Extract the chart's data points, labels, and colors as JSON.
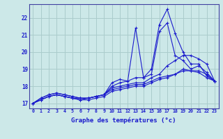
{
  "xlabel": "Graphe des températures (°c)",
  "xlim": [
    -0.5,
    23.5
  ],
  "ylim": [
    16.7,
    22.8
  ],
  "xticks": [
    0,
    1,
    2,
    3,
    4,
    5,
    6,
    7,
    8,
    9,
    10,
    11,
    12,
    13,
    14,
    15,
    16,
    17,
    18,
    19,
    20,
    21,
    22,
    23
  ],
  "yticks": [
    17,
    18,
    19,
    20,
    21,
    22
  ],
  "background_color": "#cce8e8",
  "grid_color": "#aacccc",
  "line_color": "#1a1acc",
  "series": [
    [
      17.0,
      17.3,
      17.5,
      17.6,
      17.5,
      17.4,
      17.3,
      17.3,
      17.4,
      17.5,
      18.2,
      18.4,
      18.3,
      21.4,
      18.5,
      19.0,
      21.6,
      22.5,
      21.1,
      20.0,
      19.3,
      19.3,
      18.6,
      18.3
    ],
    [
      17.0,
      17.3,
      17.5,
      17.6,
      17.5,
      17.4,
      17.3,
      17.3,
      17.4,
      17.5,
      18.0,
      18.2,
      18.3,
      18.5,
      18.5,
      18.7,
      21.2,
      21.7,
      19.8,
      19.5,
      19.0,
      19.2,
      18.8,
      18.3
    ],
    [
      17.0,
      17.2,
      17.4,
      17.5,
      17.4,
      17.3,
      17.3,
      17.3,
      17.4,
      17.5,
      17.9,
      18.0,
      18.1,
      18.2,
      18.2,
      18.5,
      18.7,
      19.2,
      19.5,
      19.8,
      19.8,
      19.6,
      19.3,
      18.3
    ],
    [
      17.0,
      17.2,
      17.4,
      17.5,
      17.4,
      17.3,
      17.2,
      17.2,
      17.3,
      17.4,
      17.7,
      17.8,
      17.9,
      18.0,
      18.0,
      18.2,
      18.4,
      18.5,
      18.7,
      18.9,
      18.9,
      18.9,
      18.7,
      18.3
    ],
    [
      17.0,
      17.2,
      17.4,
      17.5,
      17.4,
      17.3,
      17.2,
      17.3,
      17.4,
      17.5,
      17.8,
      17.9,
      18.0,
      18.1,
      18.1,
      18.3,
      18.5,
      18.6,
      18.7,
      19.0,
      18.9,
      18.8,
      18.5,
      18.3
    ]
  ]
}
